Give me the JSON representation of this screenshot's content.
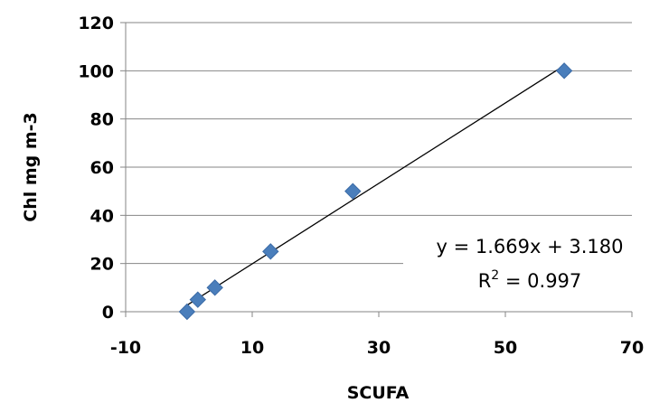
{
  "chart_data": {
    "type": "scatter",
    "title": "",
    "xlabel": "SCUFA",
    "ylabel": "Chl mg m-3",
    "xlim": [
      -10,
      70
    ],
    "ylim": [
      0,
      120
    ],
    "x_ticks": [
      -10,
      10,
      30,
      50,
      70
    ],
    "y_ticks": [
      0,
      20,
      40,
      60,
      80,
      100,
      120
    ],
    "x_tick_labels": [
      "-10",
      "10",
      "30",
      "50",
      "70"
    ],
    "y_tick_labels": [
      "0",
      "20",
      "40",
      "60",
      "80",
      "100",
      "120"
    ],
    "grid": "horizontal",
    "legend": "none",
    "series": [
      {
        "color": "#4a7ebb",
        "marker": "diamond",
        "points": [
          {
            "x": -0.3,
            "y": 0
          },
          {
            "x": 1.4,
            "y": 5
          },
          {
            "x": 4.1,
            "y": 10
          },
          {
            "x": 12.9,
            "y": 25
          },
          {
            "x": 25.9,
            "y": 50
          },
          {
            "x": 59.3,
            "y": 100
          }
        ]
      }
    ],
    "trendline": {
      "type": "linear",
      "slope": 1.669,
      "intercept": 3.18,
      "x_range": [
        -0.3,
        59.3
      ],
      "color": "#000000"
    },
    "annotations": {
      "equation": "y = 1.669x + 3.180",
      "r2_prefix": "R",
      "r2_sup": "2",
      "r2_suffix": " = 0.997"
    },
    "colors": {
      "grid": "#868686",
      "axis": "#868686"
    }
  }
}
